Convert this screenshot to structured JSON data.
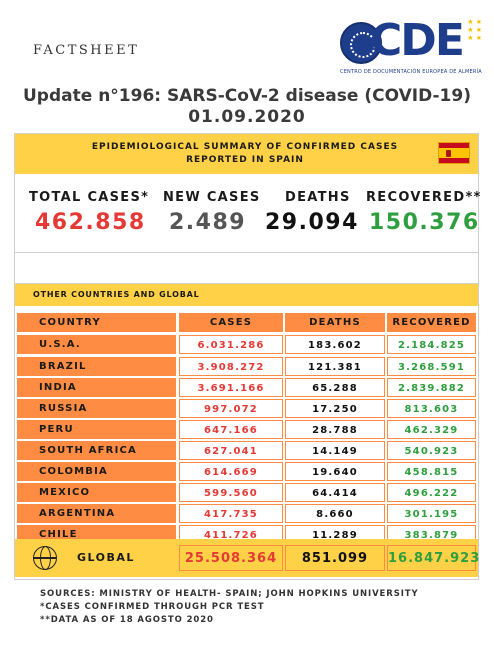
{
  "header": {
    "factsheet": "FACTSHEET",
    "logo_text": "CDE",
    "logo_subtitle": "CENTRO DE DOCUMENTACIÓN EUROPEA DE ALMERÍA",
    "title": "Update n°196: SARS-CoV-2 disease (COVID-19)",
    "date": "01.09.2020"
  },
  "banner": {
    "line1": "EPIDEMIOLOGICAL SUMMARY OF CONFIRMED CASES",
    "line2": "REPORTED IN SPAIN"
  },
  "spain": {
    "total_label": "TOTAL CASES*",
    "new_label": "NEW CASES",
    "deaths_label": "DEATHS",
    "recovered_label": "RECOVERED**",
    "total": "462.858",
    "new": "2.489",
    "deaths": "29.094",
    "recovered": "150.376"
  },
  "other": {
    "title": "OTHER COUNTRIES AND GLOBAL"
  },
  "table": {
    "headers": [
      "COUNTRY",
      "CASES",
      "DEATHS",
      "RECOVERED"
    ],
    "rows": [
      {
        "country": "U.S.A.",
        "cases": "6.031.286",
        "deaths": "183.602",
        "recovered": "2.184.825"
      },
      {
        "country": "BRAZIL",
        "cases": "3.908.272",
        "deaths": "121.381",
        "recovered": "3.268.591"
      },
      {
        "country": "INDIA",
        "cases": "3.691.166",
        "deaths": "65.288",
        "recovered": "2.839.882"
      },
      {
        "country": "RUSSIA",
        "cases": "997.072",
        "deaths": "17.250",
        "recovered": "813.603"
      },
      {
        "country": "PERU",
        "cases": "647.166",
        "deaths": "28.788",
        "recovered": "462.329"
      },
      {
        "country": "SOUTH AFRICA",
        "cases": "627.041",
        "deaths": "14.149",
        "recovered": "540.923"
      },
      {
        "country": "COLOMBIA",
        "cases": "614.669",
        "deaths": "19.640",
        "recovered": "458.815"
      },
      {
        "country": "MEXICO",
        "cases": "599.560",
        "deaths": "64.414",
        "recovered": "496.222"
      },
      {
        "country": "ARGENTINA",
        "cases": "417.735",
        "deaths": "8.660",
        "recovered": "301.195"
      },
      {
        "country": "CHILE",
        "cases": "411.726",
        "deaths": "11.289",
        "recovered": "383.879"
      }
    ],
    "global": {
      "label": "GLOBAL",
      "cases": "25.508.364",
      "deaths": "851.099",
      "recovered": "16.847.923"
    }
  },
  "notes": {
    "sources": "SOURCES: MINISTRY OF HEALTH- SPAIN; JOHN HOPKINS UNIVERSITY",
    "note1": "*CASES CONFIRMED THROUGH PCR TEST",
    "note2": "**DATA AS OF 18 AGOSTO 2020"
  },
  "colors": {
    "yellow": "#ffd147",
    "orange": "#ff8c42",
    "red": "#e53935",
    "green": "#2e9e3e",
    "logo_blue": "#1e3e8c"
  },
  "icons": [
    "cde-seal-icon",
    "spain-flag-icon",
    "globe-icon"
  ]
}
